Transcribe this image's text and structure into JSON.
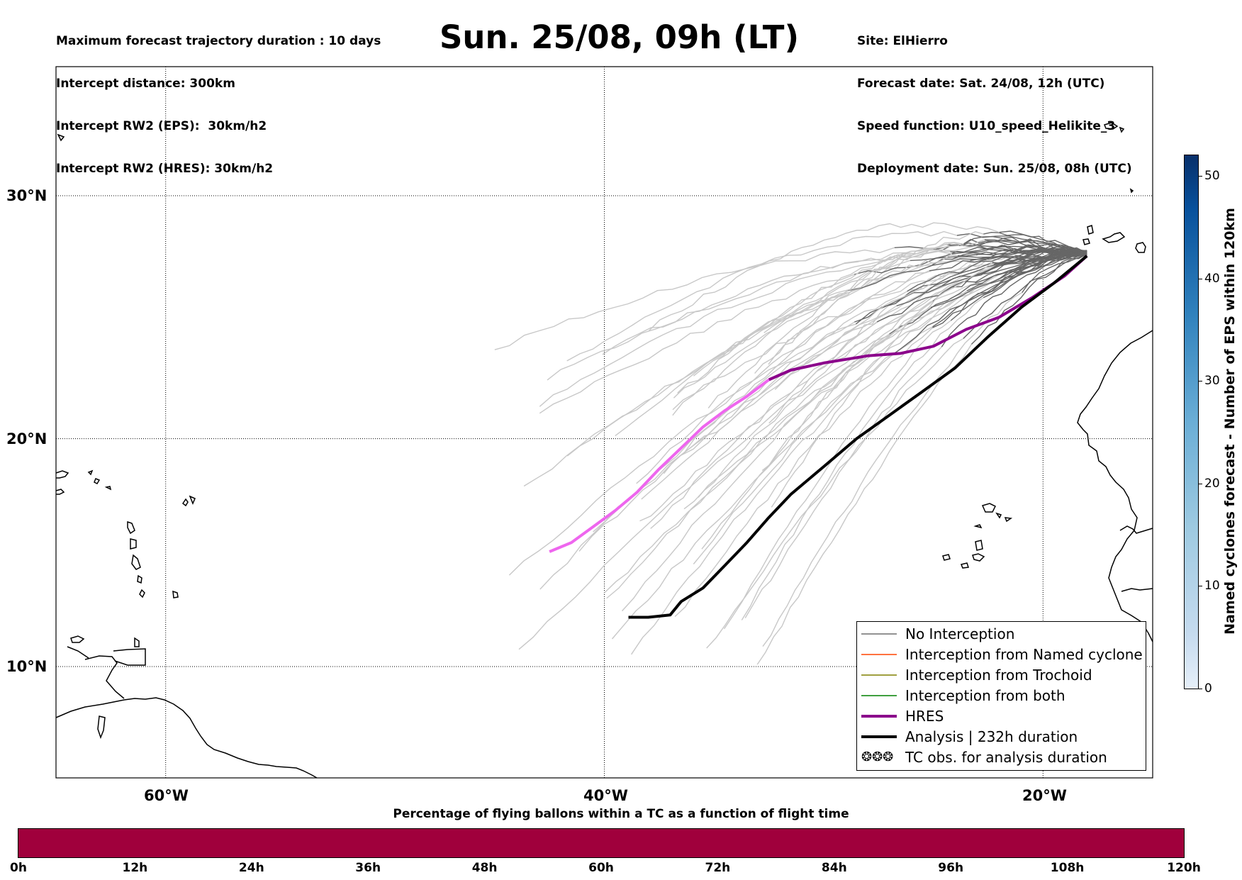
{
  "header_left": [
    "Maximum forecast trajectory duration : 10 days",
    "Intercept distance: 300km",
    "Intercept RW2 (EPS):  30km/h2",
    "Intercept RW2 (HRES): 30km/h2"
  ],
  "title": "Sun. 25/08, 09h (LT)",
  "header_right": [
    "Site: ElHierro",
    "Forecast date: Sat. 24/08, 12h (UTC)",
    "Speed function: U10_speed_Helikite_3",
    "Deployment date: Sun. 25/08, 08h (UTC)"
  ],
  "map": {
    "lat_labels": [
      "30°N",
      "20°N",
      "10°N"
    ],
    "lon_labels": [
      "60°W",
      "40°W",
      "20°W"
    ],
    "extent": {
      "lon": [
        -65,
        -15
      ],
      "lat": [
        5.4,
        34.7
      ]
    },
    "launch_site": {
      "lon": -18,
      "lat": 27.7
    },
    "hres_track": [
      [
        -18.0,
        27.6
      ],
      [
        -19.0,
        26.8
      ],
      [
        -20.5,
        25.9
      ],
      [
        -22.0,
        25.1
      ],
      [
        -23.5,
        24.6
      ],
      [
        -25.0,
        23.9
      ],
      [
        -26.5,
        23.6
      ],
      [
        -28.0,
        23.5
      ],
      [
        -30.0,
        23.2
      ],
      [
        -31.5,
        22.9
      ],
      [
        -32.5,
        22.5
      ],
      [
        -33.5,
        21.8
      ],
      [
        -34.5,
        21.2
      ],
      [
        -35.5,
        20.5
      ],
      [
        -36.5,
        19.6
      ],
      [
        -37.5,
        18.7
      ],
      [
        -38.5,
        17.7
      ],
      [
        -39.5,
        16.9
      ],
      [
        -40.5,
        16.2
      ],
      [
        -41.5,
        15.5
      ],
      [
        -42.5,
        15.1
      ]
    ],
    "hres_pink_from_index": 10,
    "analysis_track": [
      [
        -18.0,
        27.6
      ],
      [
        -19.5,
        26.5
      ],
      [
        -21.0,
        25.5
      ],
      [
        -22.5,
        24.3
      ],
      [
        -24.0,
        23.0
      ],
      [
        -25.5,
        22.0
      ],
      [
        -27.0,
        21.0
      ],
      [
        -28.5,
        20.0
      ],
      [
        -30.0,
        18.8
      ],
      [
        -31.5,
        17.6
      ],
      [
        -32.5,
        16.6
      ],
      [
        -33.5,
        15.5
      ],
      [
        -34.5,
        14.5
      ],
      [
        -35.5,
        13.5
      ],
      [
        -36.5,
        12.9
      ],
      [
        -37.0,
        12.3
      ],
      [
        -38.0,
        12.2
      ],
      [
        -38.9,
        12.2
      ]
    ],
    "colors": {
      "eps_no_interception": "#666666",
      "eps_light": "#c8c8c8",
      "hres": "#8b008b",
      "hres_tail": "#ee66ee",
      "analysis": "#000000",
      "coast": "#000000"
    }
  },
  "legend": {
    "items": [
      {
        "label": "No Interception",
        "color": "#6e6e6e",
        "width": 1.5
      },
      {
        "label": "Interception from Named cyclone",
        "color": "#ff4500",
        "width": 1.5
      },
      {
        "label": "Interception from Trochoid",
        "color": "#808000",
        "width": 1.5
      },
      {
        "label": "Interception from both",
        "color": "#008000",
        "width": 1.5
      },
      {
        "label": "HRES",
        "color": "#8b008b",
        "width": 4
      },
      {
        "label": "Analysis | 232h duration",
        "color": "#000000",
        "width": 4
      },
      {
        "label": "TC obs. for analysis duration",
        "color": "symbol",
        "width": 0
      }
    ],
    "tc_symbol": "❂❂❂"
  },
  "colorbar_vertical": {
    "label": "Named cyclones forecast - Number of EPS within 120km",
    "ticks": [
      "0",
      "10",
      "20",
      "30",
      "40",
      "50"
    ],
    "tick_values": [
      0,
      10,
      20,
      30,
      40,
      50
    ],
    "max": 52
  },
  "colorbar_horizontal": {
    "title": "Percentage of flying ballons within a TC as a function of flight time",
    "ticks": [
      "0h",
      "12h",
      "24h",
      "36h",
      "48h",
      "60h",
      "72h",
      "84h",
      "96h",
      "108h",
      "120h"
    ],
    "color": "#a0003c"
  }
}
